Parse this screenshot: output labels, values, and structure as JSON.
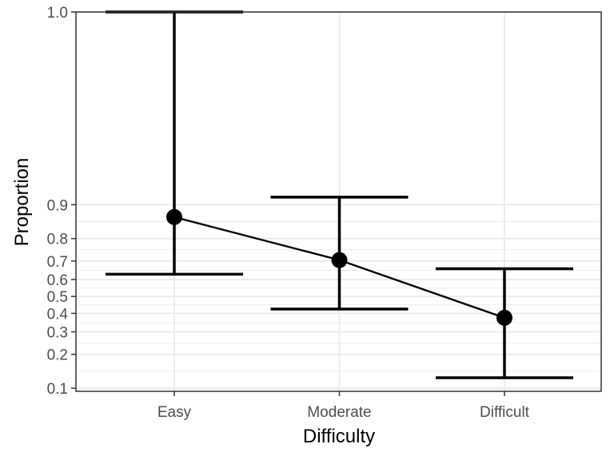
{
  "chart_data": {
    "type": "line",
    "title": "",
    "xlabel": "Difficulty",
    "ylabel": "Proportion",
    "categories": [
      "Easy",
      "Moderate",
      "Difficult"
    ],
    "series": [
      {
        "values": [
          0.87,
          0.705,
          0.375
        ],
        "lower": [
          0.63,
          0.425,
          0.125
        ],
        "upper": [
          1.0,
          0.915,
          0.66
        ]
      }
    ],
    "y_ticks": [
      0.1,
      0.2,
      0.3,
      0.4,
      0.5,
      0.6,
      0.7,
      0.8,
      0.9,
      1.0
    ],
    "y_tick_labels": [
      "0.1",
      "0.2",
      "0.3",
      "0.4",
      "0.5",
      "0.6",
      "0.7",
      "0.8",
      "0.9",
      "1.0"
    ],
    "ylim": [
      0.1,
      1.0
    ],
    "y_scale": "logit",
    "grid": true,
    "legend": "none",
    "colors": {
      "line": "#000000",
      "point": "#000000",
      "error_bar": "#000000",
      "grid": "#ebebeb",
      "panel_border": "#333333",
      "tick_label": "#4d4d4d"
    }
  }
}
